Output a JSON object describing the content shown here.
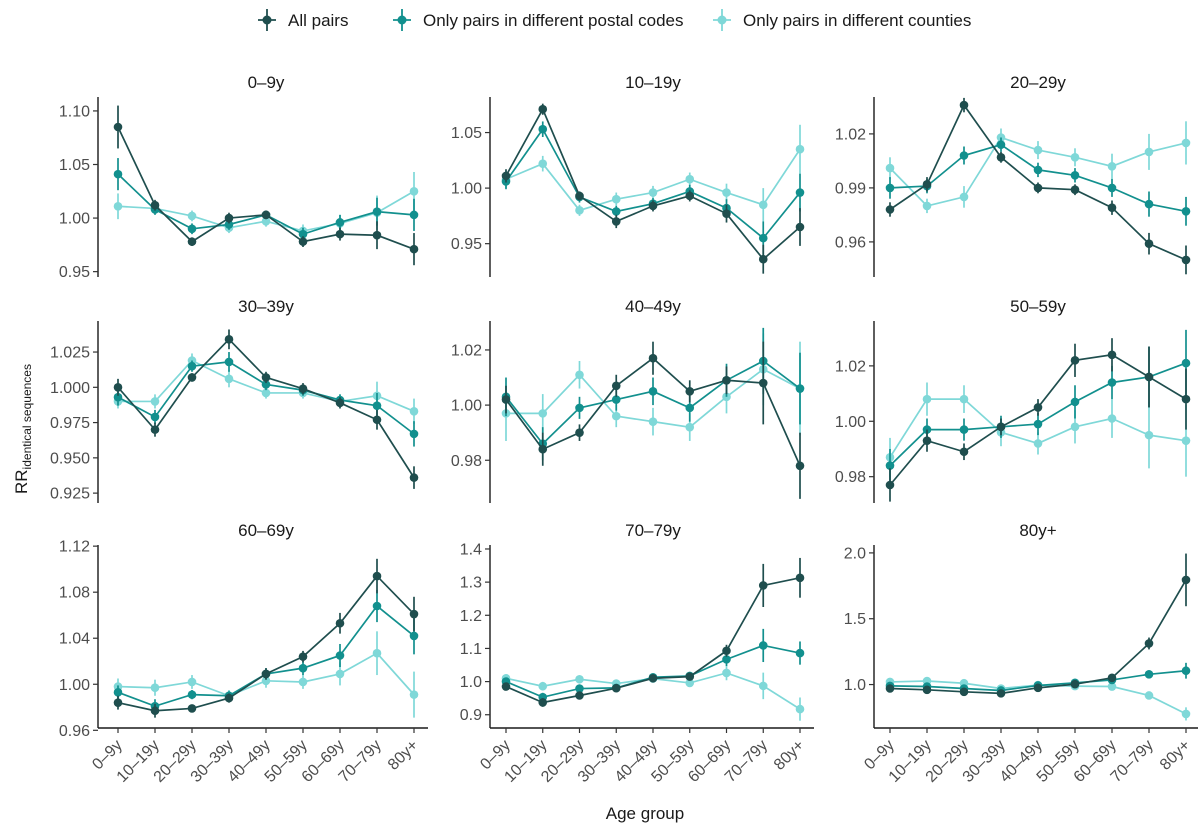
{
  "colors": {
    "All pairs": "#1f4e4e",
    "Only pairs in different postal codes": "#12908e",
    "Only pairs in different counties": "#7fd8d8"
  },
  "legend": [
    "All pairs",
    "Only pairs in different postal codes",
    "Only pairs in different counties"
  ],
  "axes": {
    "xlabel": "Age group",
    "ylabel_main": "RR",
    "ylabel_sub": "identical sequences"
  },
  "chart_data": [
    {
      "type": "line",
      "title": "0–9y",
      "categories": [
        "0–9y",
        "10–19y",
        "20–29y",
        "30–39y",
        "40–49y",
        "50–59y",
        "60–69y",
        "70–79y",
        "80y+"
      ],
      "ylim": [
        0.945,
        1.113
      ],
      "yticks": [
        0.95,
        1.0,
        1.05,
        1.1
      ],
      "ytick_labels": [
        "0.95",
        "1.00",
        "1.05",
        "1.10"
      ],
      "series": [
        {
          "name": "All pairs",
          "values": [
            1.085,
            1.012,
            0.978,
            1.0,
            1.003,
            0.978,
            0.985,
            0.984,
            0.971
          ],
          "err": [
            0.02,
            0.005,
            0.004,
            0.005,
            0.004,
            0.005,
            0.006,
            0.013,
            0.015
          ]
        },
        {
          "name": "Only pairs in different postal codes",
          "values": [
            1.041,
            1.008,
            0.99,
            0.994,
            1.003,
            0.985,
            0.996,
            1.006,
            1.003
          ],
          "err": [
            0.015,
            0.005,
            0.005,
            0.005,
            0.004,
            0.006,
            0.007,
            0.013,
            0.015
          ]
        },
        {
          "name": "Only pairs in different counties",
          "values": [
            1.011,
            1.009,
            1.002,
            0.991,
            0.997,
            0.988,
            0.995,
            1.005,
            1.025
          ],
          "err": [
            0.012,
            0.005,
            0.005,
            0.005,
            0.005,
            0.006,
            0.008,
            0.016,
            0.018
          ]
        }
      ]
    },
    {
      "type": "line",
      "title": "10–19y",
      "categories": [
        "0–9y",
        "10–19y",
        "20–29y",
        "30–39y",
        "40–49y",
        "50–59y",
        "60–69y",
        "70–79y",
        "80y+"
      ],
      "ylim": [
        0.92,
        1.082
      ],
      "yticks": [
        0.95,
        1.0,
        1.05
      ],
      "ytick_labels": [
        "0.95",
        "1.00",
        "1.05"
      ],
      "series": [
        {
          "name": "All pairs",
          "values": [
            1.011,
            1.071,
            0.993,
            0.97,
            0.984,
            0.993,
            0.977,
            0.936,
            0.965
          ],
          "err": [
            0.006,
            0.005,
            0.004,
            0.006,
            0.005,
            0.005,
            0.008,
            0.013,
            0.017
          ]
        },
        {
          "name": "Only pairs in different postal codes",
          "values": [
            1.006,
            1.053,
            0.992,
            0.979,
            0.986,
            0.997,
            0.982,
            0.955,
            0.996
          ],
          "err": [
            0.007,
            0.007,
            0.005,
            0.005,
            0.005,
            0.006,
            0.008,
            0.015,
            0.017
          ]
        },
        {
          "name": "Only pairs in different counties",
          "values": [
            1.008,
            1.022,
            0.98,
            0.99,
            0.996,
            1.008,
            0.996,
            0.985,
            1.035
          ],
          "err": [
            0.008,
            0.007,
            0.005,
            0.006,
            0.006,
            0.006,
            0.008,
            0.015,
            0.022
          ]
        }
      ]
    },
    {
      "type": "line",
      "title": "20–29y",
      "categories": [
        "0–9y",
        "10–19y",
        "20–29y",
        "30–39y",
        "40–49y",
        "50–59y",
        "60–69y",
        "70–79y",
        "80y+"
      ],
      "ylim": [
        0.9405,
        1.0405
      ],
      "yticks": [
        0.96,
        0.99,
        1.02
      ],
      "ytick_labels": [
        "0.96",
        "0.99",
        "1.02"
      ],
      "series": [
        {
          "name": "All pairs",
          "values": [
            0.978,
            0.992,
            1.036,
            1.007,
            0.99,
            0.989,
            0.979,
            0.959,
            0.95
          ],
          "err": [
            0.004,
            0.004,
            0.004,
            0.003,
            0.003,
            0.003,
            0.004,
            0.006,
            0.008
          ]
        },
        {
          "name": "Only pairs in different postal codes",
          "values": [
            0.99,
            0.991,
            1.008,
            1.014,
            1.0,
            0.997,
            0.99,
            0.981,
            0.977
          ],
          "err": [
            0.006,
            0.004,
            0.005,
            0.004,
            0.004,
            0.004,
            0.005,
            0.007,
            0.008
          ]
        },
        {
          "name": "Only pairs in different counties",
          "values": [
            1.001,
            0.98,
            0.985,
            1.018,
            1.011,
            1.007,
            1.002,
            1.01,
            1.015
          ],
          "err": [
            0.006,
            0.004,
            0.006,
            0.005,
            0.005,
            0.005,
            0.007,
            0.01,
            0.012
          ]
        }
      ]
    },
    {
      "type": "line",
      "title": "30–39y",
      "categories": [
        "0–9y",
        "10–19y",
        "20–29y",
        "30–39y",
        "40–49y",
        "50–59y",
        "60–69y",
        "70–79y",
        "80y+"
      ],
      "ylim": [
        0.918,
        1.047
      ],
      "yticks": [
        0.925,
        0.95,
        0.975,
        1.0,
        1.025
      ],
      "ytick_labels": [
        "0.925",
        "0.950",
        "0.975",
        "1.000",
        "1.025"
      ],
      "series": [
        {
          "name": "All pairs",
          "values": [
            1.0,
            0.97,
            1.007,
            1.034,
            1.007,
            0.999,
            0.989,
            0.977,
            0.936
          ],
          "err": [
            0.006,
            0.005,
            0.003,
            0.007,
            0.004,
            0.004,
            0.004,
            0.007,
            0.008
          ]
        },
        {
          "name": "Only pairs in different postal codes",
          "values": [
            0.993,
            0.979,
            1.015,
            1.018,
            1.002,
            0.998,
            0.991,
            0.987,
            0.967
          ],
          "err": [
            0.006,
            0.005,
            0.004,
            0.007,
            0.004,
            0.004,
            0.004,
            0.009,
            0.009
          ]
        },
        {
          "name": "Only pairs in different counties",
          "values": [
            0.99,
            0.99,
            1.019,
            1.006,
            0.996,
            0.996,
            0.99,
            0.994,
            0.983
          ],
          "err": [
            0.005,
            0.005,
            0.005,
            0.006,
            0.004,
            0.004,
            0.005,
            0.01,
            0.009
          ]
        }
      ]
    },
    {
      "type": "line",
      "title": "40–49y",
      "categories": [
        "0–9y",
        "10–19y",
        "20–29y",
        "30–39y",
        "40–49y",
        "50–59y",
        "60–69y",
        "70–79y",
        "80y+"
      ],
      "ylim": [
        0.9645,
        1.0305
      ],
      "yticks": [
        0.98,
        1.0,
        1.02
      ],
      "ytick_labels": [
        "0.98",
        "1.00",
        "1.02"
      ],
      "series": [
        {
          "name": "All pairs",
          "values": [
            1.002,
            0.984,
            0.99,
            1.007,
            1.017,
            1.005,
            1.009,
            1.008,
            0.978
          ],
          "err": [
            0.005,
            0.006,
            0.003,
            0.004,
            0.006,
            0.004,
            0.005,
            0.015,
            0.012
          ]
        },
        {
          "name": "Only pairs in different postal codes",
          "values": [
            1.003,
            0.986,
            0.999,
            1.002,
            1.005,
            0.999,
            1.009,
            1.016,
            1.006
          ],
          "err": [
            0.007,
            0.006,
            0.004,
            0.004,
            0.005,
            0.005,
            0.006,
            0.012,
            0.013
          ]
        },
        {
          "name": "Only pairs in different counties",
          "values": [
            0.997,
            0.997,
            1.011,
            0.996,
            0.994,
            0.992,
            1.003,
            1.013,
            1.006
          ],
          "err": [
            0.01,
            0.007,
            0.005,
            0.004,
            0.005,
            0.005,
            0.006,
            0.013,
            0.017
          ]
        }
      ]
    },
    {
      "type": "line",
      "title": "50–59y",
      "categories": [
        "0–9y",
        "10–19y",
        "20–29y",
        "30–39y",
        "40–49y",
        "50–59y",
        "60–69y",
        "70–79y",
        "80y+"
      ],
      "ylim": [
        0.9705,
        1.0362
      ],
      "yticks": [
        0.98,
        1.0,
        1.02
      ],
      "ytick_labels": [
        "0.98",
        "1.00",
        "1.02"
      ],
      "series": [
        {
          "name": "All pairs",
          "values": [
            0.977,
            0.993,
            0.989,
            0.998,
            1.005,
            1.022,
            1.024,
            1.016,
            1.008
          ],
          "err": [
            0.006,
            0.004,
            0.003,
            0.003,
            0.003,
            0.006,
            0.006,
            0.011,
            0.011
          ]
        },
        {
          "name": "Only pairs in different postal codes",
          "values": [
            0.984,
            0.997,
            0.997,
            0.998,
            0.999,
            1.007,
            1.014,
            1.016,
            1.021
          ],
          "err": [
            0.006,
            0.004,
            0.004,
            0.004,
            0.004,
            0.006,
            0.006,
            0.011,
            0.012
          ]
        },
        {
          "name": "Only pairs in different counties",
          "values": [
            0.987,
            1.008,
            1.008,
            0.996,
            0.992,
            0.998,
            1.001,
            0.995,
            0.993
          ],
          "err": [
            0.007,
            0.006,
            0.005,
            0.005,
            0.004,
            0.006,
            0.007,
            0.012,
            0.013
          ]
        }
      ]
    },
    {
      "type": "line",
      "title": "60–69y",
      "categories": [
        "0–9y",
        "10–19y",
        "20–29y",
        "30–39y",
        "40–49y",
        "50–59y",
        "60–69y",
        "70–79y",
        "80y+"
      ],
      "ylim": [
        0.962,
        1.121
      ],
      "yticks": [
        0.96,
        1.0,
        1.04,
        1.08,
        1.12
      ],
      "ytick_labels": [
        "0.96",
        "1.00",
        "1.04",
        "1.08",
        "1.12"
      ],
      "series": [
        {
          "name": "All pairs",
          "values": [
            0.984,
            0.977,
            0.979,
            0.988,
            1.009,
            1.024,
            1.053,
            1.094,
            1.061
          ],
          "err": [
            0.006,
            0.006,
            0.003,
            0.004,
            0.005,
            0.005,
            0.009,
            0.015,
            0.015
          ]
        },
        {
          "name": "Only pairs in different postal codes",
          "values": [
            0.993,
            0.981,
            0.991,
            0.99,
            1.009,
            1.014,
            1.025,
            1.068,
            1.042
          ],
          "err": [
            0.006,
            0.006,
            0.004,
            0.004,
            0.005,
            0.006,
            0.01,
            0.014,
            0.016
          ]
        },
        {
          "name": "Only pairs in different counties",
          "values": [
            0.998,
            0.997,
            1.002,
            0.99,
            1.003,
            1.002,
            1.009,
            1.027,
            0.991
          ],
          "err": [
            0.007,
            0.007,
            0.006,
            0.005,
            0.006,
            0.006,
            0.01,
            0.019,
            0.02
          ]
        }
      ]
    },
    {
      "type": "line",
      "title": "70–79y",
      "categories": [
        "0–9y",
        "10–19y",
        "20–29y",
        "30–39y",
        "40–49y",
        "50–59y",
        "60–69y",
        "70–79y",
        "80y+"
      ],
      "ylim": [
        0.86,
        1.412
      ],
      "yticks": [
        0.9,
        1.0,
        1.1,
        1.2,
        1.3,
        1.4
      ],
      "ytick_labels": [
        "0.9",
        "1.0",
        "1.1",
        "1.2",
        "1.3",
        "1.4"
      ],
      "series": [
        {
          "name": "All pairs",
          "values": [
            0.985,
            0.937,
            0.958,
            0.98,
            1.01,
            1.015,
            1.093,
            1.29,
            1.313
          ],
          "err": [
            0.008,
            0.013,
            0.008,
            0.008,
            0.008,
            0.008,
            0.018,
            0.065,
            0.06
          ]
        },
        {
          "name": "Only pairs in different postal codes",
          "values": [
            1.0,
            0.953,
            0.979,
            0.981,
            1.013,
            1.017,
            1.067,
            1.109,
            1.086
          ],
          "err": [
            0.01,
            0.013,
            0.008,
            0.008,
            0.008,
            0.008,
            0.02,
            0.05,
            0.035
          ]
        },
        {
          "name": "Only pairs in different counties",
          "values": [
            1.01,
            0.986,
            1.007,
            0.994,
            1.009,
            0.996,
            1.026,
            0.987,
            0.917
          ],
          "err": [
            0.012,
            0.013,
            0.008,
            0.008,
            0.008,
            0.01,
            0.022,
            0.04,
            0.035
          ]
        }
      ]
    },
    {
      "type": "line",
      "title": "80y+",
      "categories": [
        "0–9y",
        "10–19y",
        "20–29y",
        "30–39y",
        "40–49y",
        "50–59y",
        "60–69y",
        "70–79y",
        "80y+"
      ],
      "ylim": [
        0.67,
        2.06
      ],
      "yticks": [
        1.0,
        1.5,
        2.0
      ],
      "ytick_labels": [
        "1.0",
        "1.5",
        "2.0"
      ],
      "series": [
        {
          "name": "All pairs",
          "values": [
            0.97,
            0.96,
            0.945,
            0.933,
            0.975,
            1.003,
            1.051,
            1.312,
            1.795
          ],
          "err": [
            0.01,
            0.012,
            0.01,
            0.01,
            0.01,
            0.015,
            0.02,
            0.045,
            0.2
          ]
        },
        {
          "name": "Only pairs in different postal codes",
          "values": [
            0.99,
            0.985,
            0.97,
            0.955,
            0.993,
            1.013,
            1.035,
            1.078,
            1.105
          ],
          "err": [
            0.012,
            0.012,
            0.01,
            0.012,
            0.012,
            0.015,
            0.02,
            0.03,
            0.06
          ]
        },
        {
          "name": "Only pairs in different counties",
          "values": [
            1.02,
            1.027,
            1.01,
            0.97,
            0.996,
            0.988,
            0.985,
            0.917,
            0.777
          ],
          "err": [
            0.015,
            0.012,
            0.01,
            0.012,
            0.015,
            0.015,
            0.02,
            0.03,
            0.05
          ]
        }
      ]
    }
  ]
}
